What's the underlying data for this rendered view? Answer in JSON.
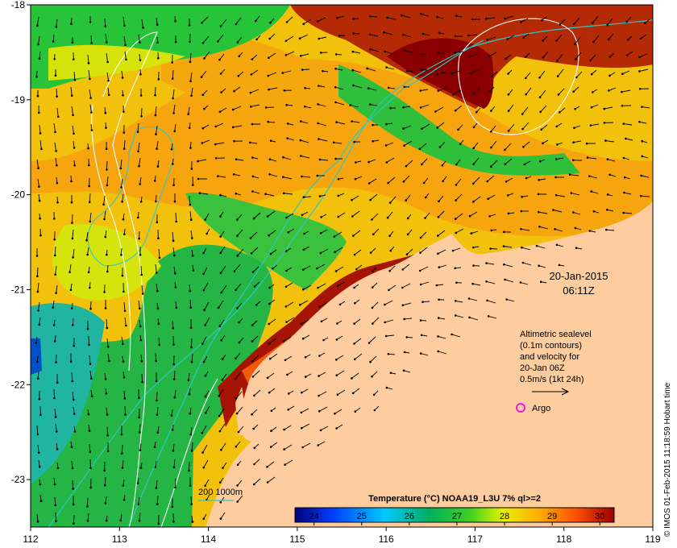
{
  "map": {
    "lon_ticks": [
      "112",
      "113",
      "114",
      "115",
      "116",
      "117",
      "118",
      "119"
    ],
    "lat_ticks": [
      "-18",
      "-19",
      "-20",
      "-21",
      "-22",
      "-23"
    ],
    "lon_range": [
      112,
      119
    ],
    "lat_range": [
      -23.5,
      -18
    ],
    "date": "20-Jan-2015",
    "time": "06:11Z",
    "legend_lines": [
      "Altimetric sealevel",
      "(0.1m contours)",
      "and velocity for",
      "20-Jan 06Z",
      "0.5m/s (1kt 24h)"
    ],
    "argo_label": "Argo",
    "depth_legend": "200  1000m",
    "colorbar_title": "Temperature (°C) NOAA19_L3U 7% ql>=2",
    "colorbar_ticks": [
      "24",
      "25",
      "26",
      "27",
      "28",
      "29",
      "30"
    ],
    "colorbar_range": [
      23.6,
      30.3
    ],
    "credit": "© IMOS 01-Feb-2015 11:18:59 Hobart time",
    "colors": {
      "land": "#fecd9f",
      "bathymetry": "#2ec7c7",
      "contour": "#ffffff",
      "argo": "#e61ee6"
    }
  }
}
